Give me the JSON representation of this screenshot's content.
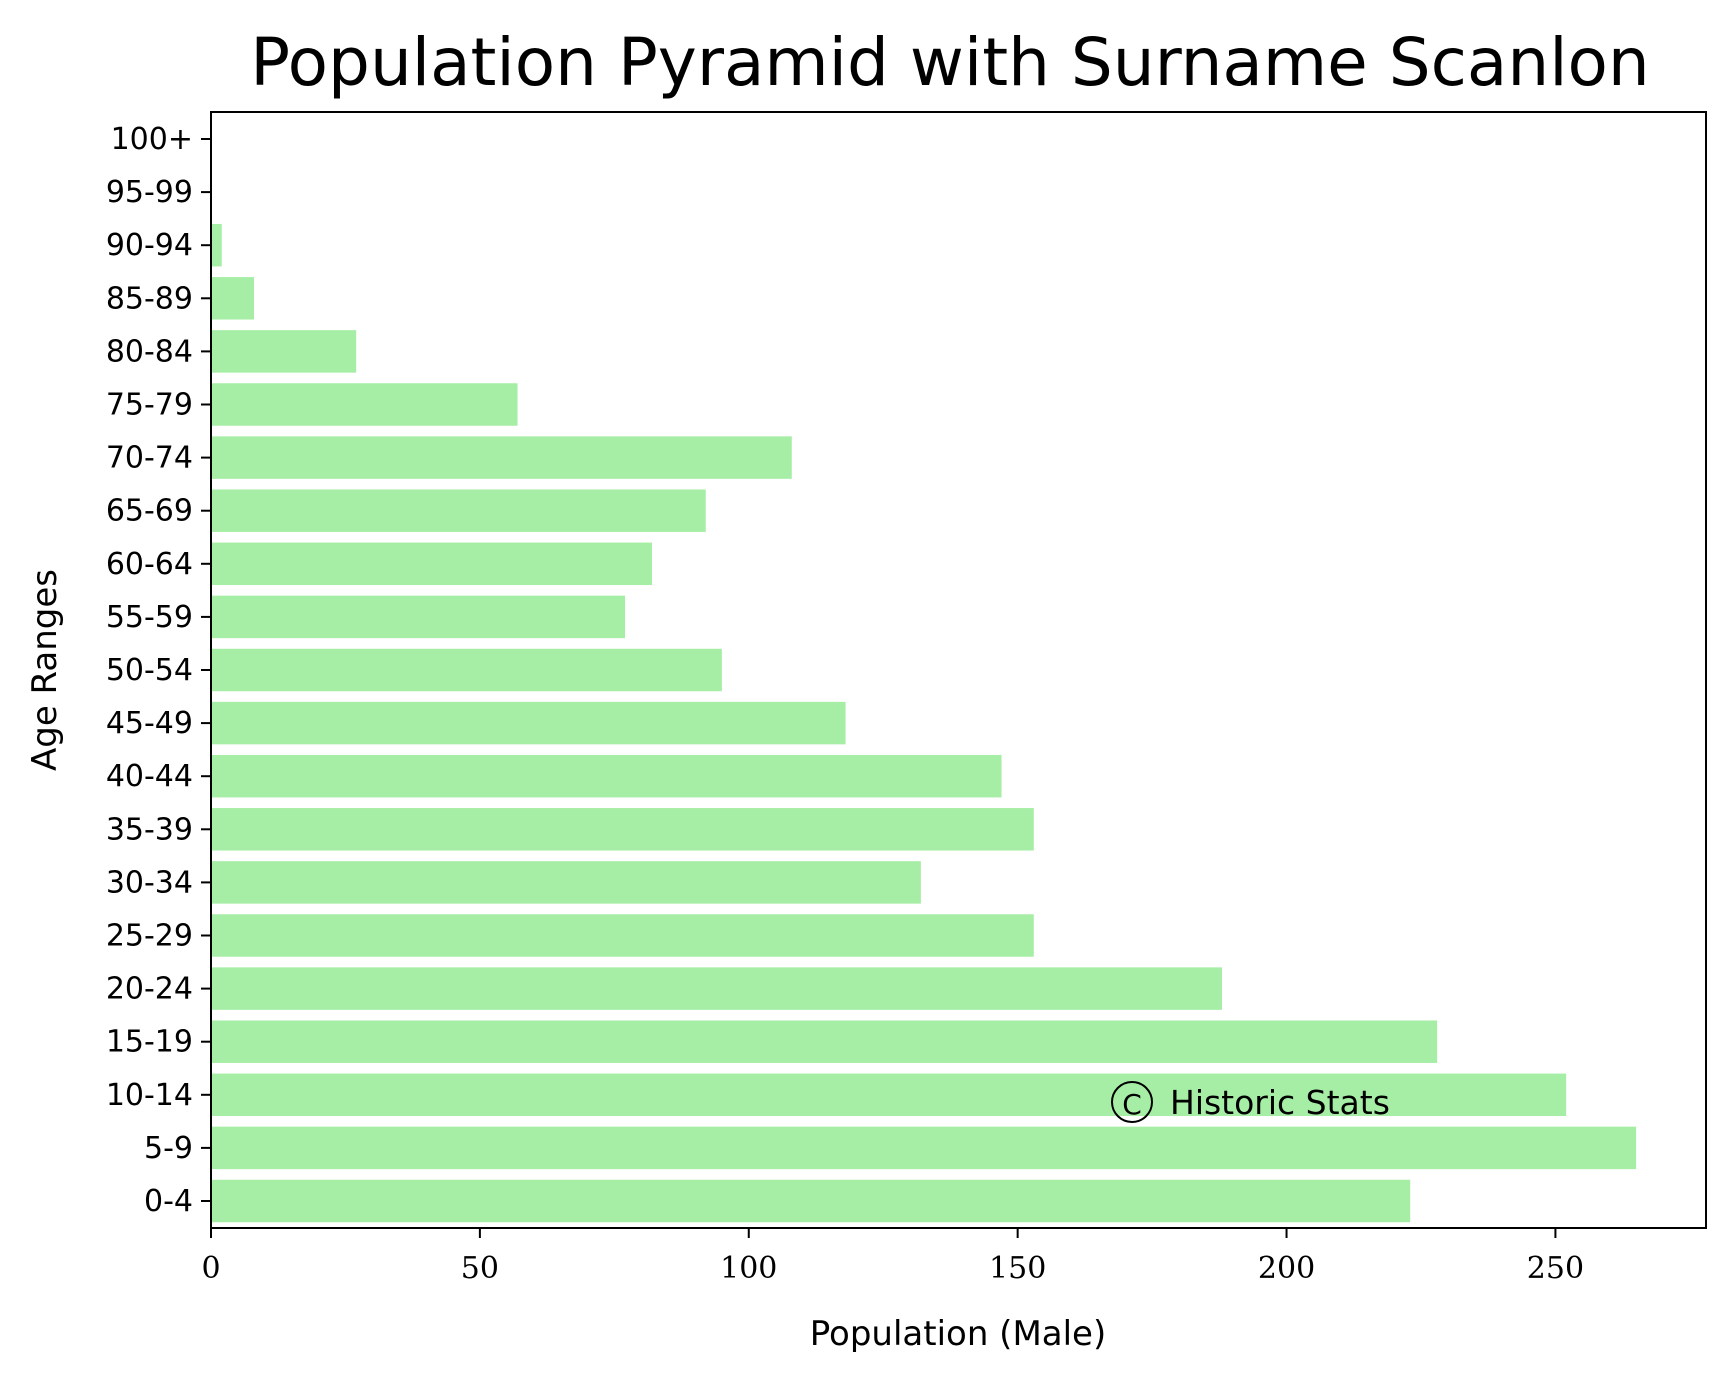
{
  "chart_data": {
    "type": "bar",
    "orientation": "horizontal",
    "title": "Population Pyramid with Surname Scanlon",
    "xlabel": "Population (Male)",
    "ylabel": "Age Ranges",
    "xlim": [
      0,
      278
    ],
    "xticks": [
      0,
      50,
      100,
      150,
      200,
      250
    ],
    "categories": [
      "0-4",
      "5-9",
      "10-14",
      "15-19",
      "20-24",
      "25-29",
      "30-34",
      "35-39",
      "40-44",
      "45-49",
      "50-54",
      "55-59",
      "60-64",
      "65-69",
      "70-74",
      "75-79",
      "80-84",
      "85-89",
      "90-94",
      "95-99",
      "100+"
    ],
    "series": [
      {
        "values": [
          223,
          265,
          252,
          228,
          188,
          153,
          132,
          153,
          147,
          118,
          95,
          77,
          82,
          92,
          108,
          57,
          27,
          8,
          2,
          0,
          0
        ]
      }
    ],
    "bar_color": "#a6eea6",
    "grid": false,
    "annotation": "Historic Stats",
    "annotation_symbol": "C"
  }
}
